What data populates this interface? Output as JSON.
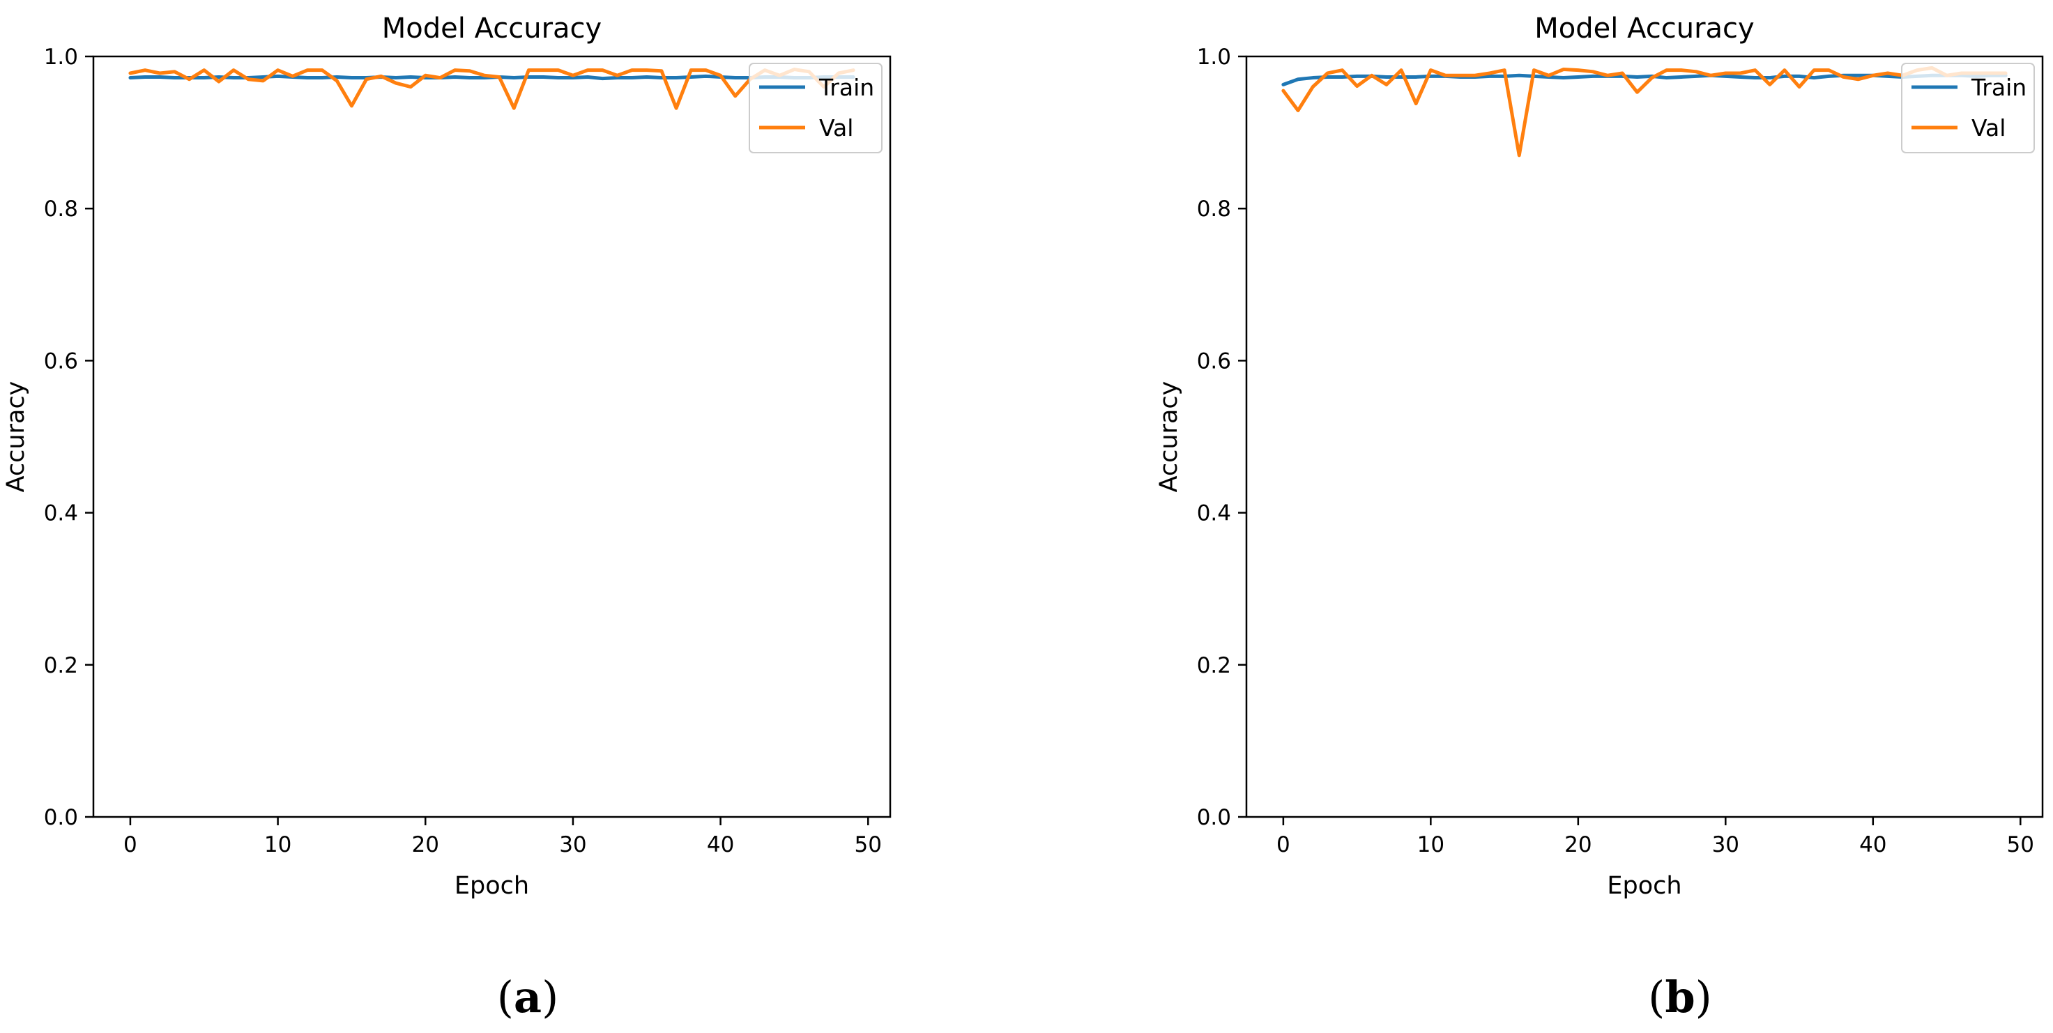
{
  "chart_data": [
    {
      "type": "line",
      "panel_label": "a",
      "title": "Model Accuracy",
      "xlabel": "Epoch",
      "ylabel": "Accuracy",
      "xlim": [
        -2.5,
        51.5
      ],
      "ylim": [
        0.0,
        1.0
      ],
      "xticks": [
        0,
        10,
        20,
        30,
        40,
        50
      ],
      "yticks": [
        0.0,
        0.2,
        0.4,
        0.6,
        0.8,
        1.0
      ],
      "xtick_labels": [
        "0",
        "10",
        "20",
        "30",
        "40",
        "50"
      ],
      "ytick_labels": [
        "0.0",
        "0.2",
        "0.4",
        "0.6",
        "0.8",
        "1.0"
      ],
      "grid": false,
      "legend_position": "top-right",
      "x": [
        0,
        1,
        2,
        3,
        4,
        5,
        6,
        7,
        8,
        9,
        10,
        11,
        12,
        13,
        14,
        15,
        16,
        17,
        18,
        19,
        20,
        21,
        22,
        23,
        24,
        25,
        26,
        27,
        28,
        29,
        30,
        31,
        32,
        33,
        34,
        35,
        36,
        37,
        38,
        39,
        40,
        41,
        42,
        43,
        44,
        45,
        46,
        47,
        48,
        49
      ],
      "series": [
        {
          "name": "Train",
          "color": "#1f77b4",
          "values": [
            0.972,
            0.973,
            0.973,
            0.972,
            0.972,
            0.972,
            0.973,
            0.972,
            0.972,
            0.973,
            0.974,
            0.973,
            0.972,
            0.972,
            0.973,
            0.972,
            0.972,
            0.973,
            0.972,
            0.973,
            0.972,
            0.972,
            0.973,
            0.972,
            0.972,
            0.973,
            0.972,
            0.973,
            0.973,
            0.972,
            0.972,
            0.973,
            0.971,
            0.972,
            0.972,
            0.973,
            0.972,
            0.972,
            0.973,
            0.974,
            0.973,
            0.972,
            0.972,
            0.973,
            0.973,
            0.972,
            0.972,
            0.973,
            0.973,
            0.973
          ]
        },
        {
          "name": "Val",
          "color": "#ff7f0e",
          "values": [
            0.978,
            0.982,
            0.978,
            0.98,
            0.97,
            0.982,
            0.967,
            0.982,
            0.97,
            0.968,
            0.982,
            0.974,
            0.982,
            0.982,
            0.968,
            0.935,
            0.97,
            0.974,
            0.965,
            0.96,
            0.975,
            0.972,
            0.982,
            0.981,
            0.975,
            0.973,
            0.932,
            0.982,
            0.982,
            0.982,
            0.975,
            0.982,
            0.982,
            0.975,
            0.982,
            0.982,
            0.981,
            0.932,
            0.982,
            0.982,
            0.975,
            0.948,
            0.97,
            0.982,
            0.975,
            0.983,
            0.98,
            0.96,
            0.978,
            0.982
          ]
        }
      ]
    },
    {
      "type": "line",
      "panel_label": "b",
      "title": "Model Accuracy",
      "xlabel": "Epoch",
      "ylabel": "Accuracy",
      "xlim": [
        -2.5,
        51.5
      ],
      "ylim": [
        0.0,
        1.0
      ],
      "xticks": [
        0,
        10,
        20,
        30,
        40,
        50
      ],
      "yticks": [
        0.0,
        0.2,
        0.4,
        0.6,
        0.8,
        1.0
      ],
      "xtick_labels": [
        "0",
        "10",
        "20",
        "30",
        "40",
        "50"
      ],
      "ytick_labels": [
        "0.0",
        "0.2",
        "0.4",
        "0.6",
        "0.8",
        "1.0"
      ],
      "grid": false,
      "legend_position": "top-right",
      "x": [
        0,
        1,
        2,
        3,
        4,
        5,
        6,
        7,
        8,
        9,
        10,
        11,
        12,
        13,
        14,
        15,
        16,
        17,
        18,
        19,
        20,
        21,
        22,
        23,
        24,
        25,
        26,
        27,
        28,
        29,
        30,
        31,
        32,
        33,
        34,
        35,
        36,
        37,
        38,
        39,
        40,
        41,
        42,
        43,
        44,
        45,
        46,
        47,
        48,
        49
      ],
      "series": [
        {
          "name": "Train",
          "color": "#1f77b4",
          "values": [
            0.963,
            0.97,
            0.972,
            0.973,
            0.973,
            0.974,
            0.974,
            0.973,
            0.973,
            0.973,
            0.974,
            0.974,
            0.973,
            0.973,
            0.974,
            0.974,
            0.975,
            0.974,
            0.973,
            0.972,
            0.973,
            0.974,
            0.974,
            0.974,
            0.973,
            0.974,
            0.972,
            0.973,
            0.974,
            0.975,
            0.974,
            0.973,
            0.972,
            0.972,
            0.974,
            0.974,
            0.972,
            0.974,
            0.975,
            0.975,
            0.975,
            0.974,
            0.973,
            0.974,
            0.975,
            0.975,
            0.975,
            0.974,
            0.975,
            0.975
          ]
        },
        {
          "name": "Val",
          "color": "#ff7f0e",
          "values": [
            0.955,
            0.929,
            0.96,
            0.978,
            0.982,
            0.961,
            0.975,
            0.963,
            0.982,
            0.938,
            0.982,
            0.975,
            0.975,
            0.975,
            0.978,
            0.982,
            0.87,
            0.982,
            0.975,
            0.983,
            0.982,
            0.98,
            0.975,
            0.978,
            0.953,
            0.972,
            0.982,
            0.982,
            0.98,
            0.975,
            0.978,
            0.978,
            0.982,
            0.963,
            0.982,
            0.96,
            0.982,
            0.982,
            0.973,
            0.97,
            0.975,
            0.978,
            0.975,
            0.982,
            0.985,
            0.975,
            0.978,
            0.978,
            0.978,
            0.978
          ]
        }
      ]
    }
  ]
}
